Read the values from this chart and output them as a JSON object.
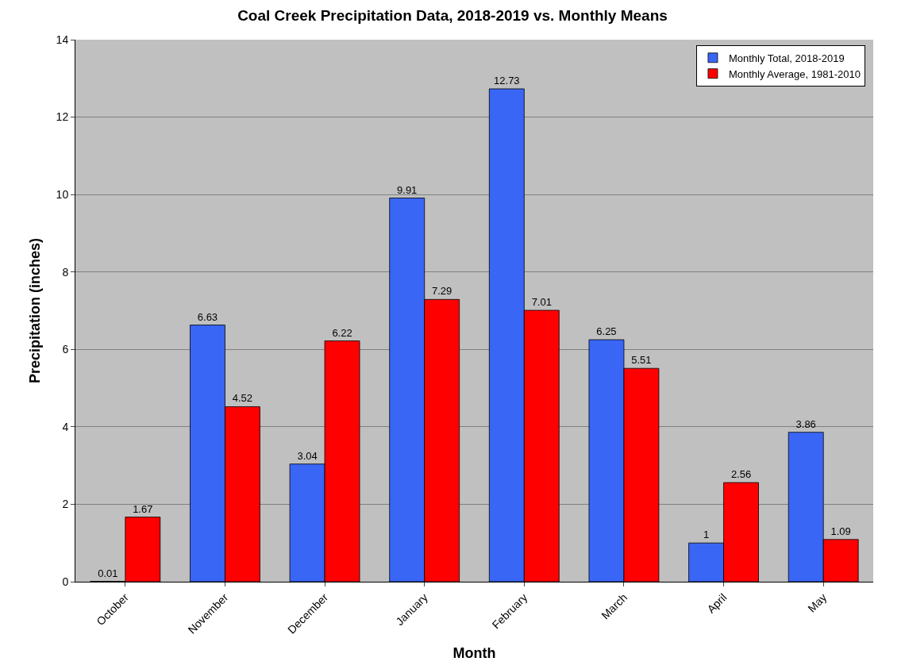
{
  "chart_data": {
    "type": "bar",
    "title": "Coal Creek Precipitation Data, 2018-2019 vs. Monthly Means",
    "xlabel": "Month",
    "ylabel": "Precipitation (inches)",
    "categories": [
      "October",
      "November",
      "December",
      "January",
      "February",
      "March",
      "April",
      "May"
    ],
    "series": [
      {
        "name": "Monthly Total, 2018-2019",
        "color": "#3a66f5",
        "values": [
          0.01,
          6.63,
          3.04,
          9.91,
          12.73,
          6.25,
          1,
          3.86
        ]
      },
      {
        "name": "Monthly Average, 1981-2010",
        "color": "#ff0000",
        "values": [
          1.67,
          4.52,
          6.22,
          7.29,
          7.01,
          5.51,
          2.56,
          1.09
        ]
      }
    ],
    "ylim": [
      0,
      14
    ],
    "yticks": [
      0,
      2,
      4,
      6,
      8,
      10,
      12,
      14
    ],
    "grid": "y",
    "legend": "top right",
    "data_labels": true
  }
}
